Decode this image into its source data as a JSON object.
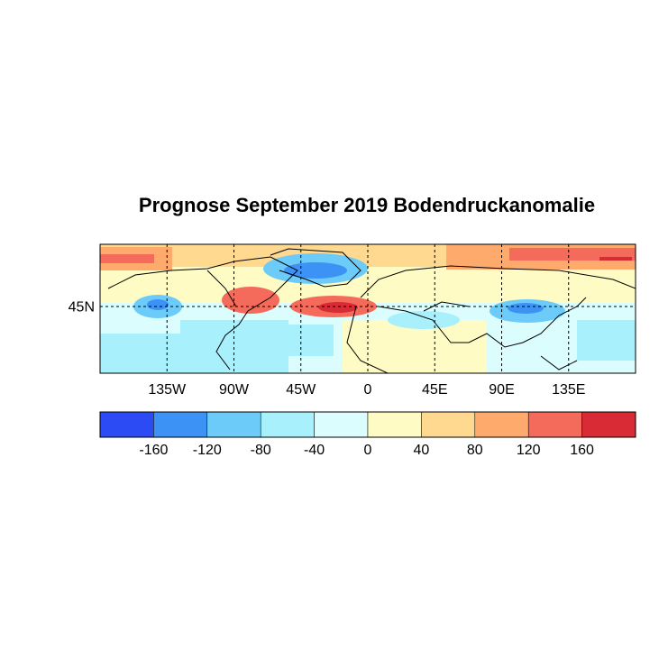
{
  "chart_data": {
    "type": "map",
    "title": "Prognose September 2019 Bodendruckanomalie",
    "xlim": [
      -180,
      180
    ],
    "ylim": [
      0,
      87
    ],
    "xticks": [
      {
        "value": -135,
        "label": "135W"
      },
      {
        "value": -90,
        "label": "90W"
      },
      {
        "value": -45,
        "label": "45W"
      },
      0,
      {
        "value": 45,
        "label": "45E"
      },
      {
        "value": 90,
        "label": "90E"
      },
      {
        "value": 135,
        "label": "135E"
      }
    ],
    "yticks": [
      {
        "value": 45,
        "label": "45N"
      }
    ],
    "colorbar": {
      "lim": [
        -200,
        200
      ],
      "ticks": [
        -160,
        -120,
        -80,
        -40,
        0,
        40,
        80,
        120,
        160
      ],
      "colors": [
        "#2c4bf5",
        "#3d93f5",
        "#6ccbf8",
        "#a7f0fc",
        "#dcfdfd",
        "#fefcc4",
        "#fed98f",
        "#fdaa6c",
        "#f46a5b",
        "#d82b36"
      ]
    }
  }
}
